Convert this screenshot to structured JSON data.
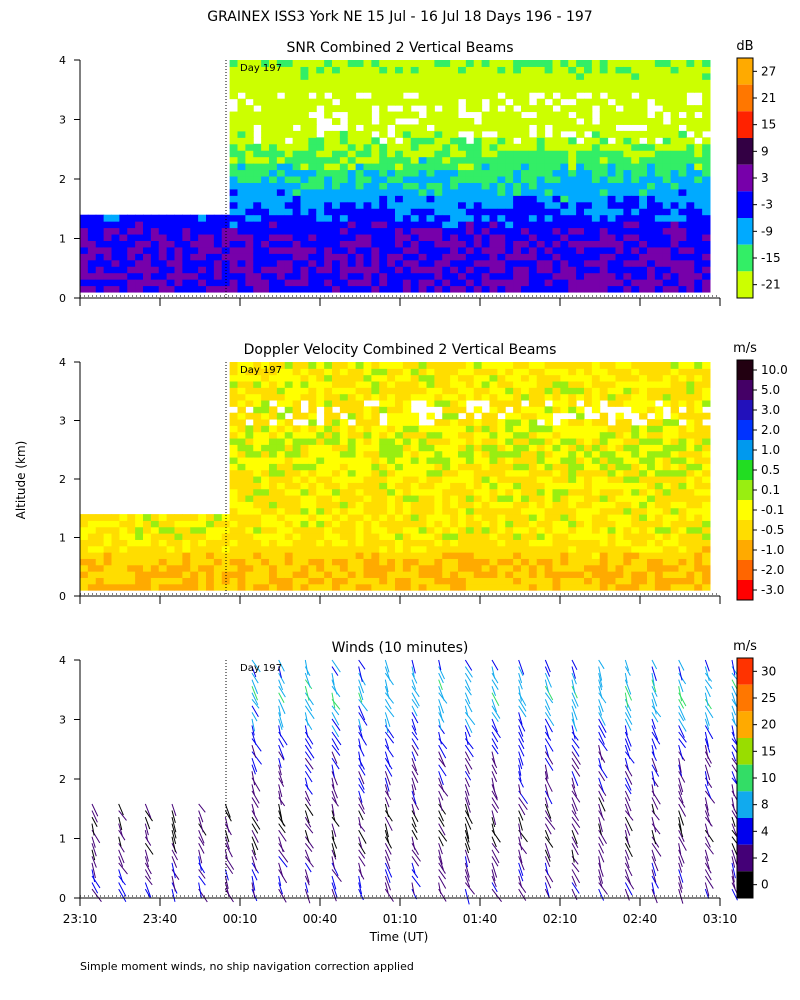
{
  "figure": {
    "title": "GRAINEX ISS3 York NE  15 Jul - 16 Jul 18 Days 196 - 197",
    "footnote": "Simple moment winds, no ship navigation correction applied",
    "ylabel": "Altitude (km)",
    "xlabel": "Time (UT)",
    "day_marker": "Day 197",
    "x_ticks": [
      "23:10",
      "23:40",
      "00:10",
      "00:40",
      "01:10",
      "01:40",
      "02:10",
      "02:40",
      "03:10"
    ],
    "y_ticks": [
      "0",
      "1",
      "2",
      "3",
      "4"
    ]
  },
  "chart_data": [
    {
      "type": "heatmap",
      "title": "SNR Combined 2 Vertical Beams",
      "xlabel": "Time (UT)",
      "ylabel": "Altitude (km)",
      "x_range": [
        "23:10",
        "03:10"
      ],
      "ylim": [
        0,
        4
      ],
      "colorbar_unit": "dB",
      "colorbar_ticks": [
        "27",
        "21",
        "15",
        "9",
        "3",
        "-3",
        "-9",
        "-15",
        "-21"
      ],
      "colorbar_colors": [
        "#ffaa00",
        "#ff7700",
        "#ff2200",
        "#330044",
        "#7700aa",
        "#0000ff",
        "#00aaff",
        "#33ee66",
        "#ccff00"
      ],
      "data_coverage": [
        {
          "time_start": "23:10",
          "time_end": "00:04",
          "alt_max_km": 1.4
        },
        {
          "time_start": "00:04",
          "time_end": "03:10",
          "alt_max_km": 4.0
        }
      ],
      "bands": [
        {
          "alt_km": 0.5,
          "snr_db": 3
        },
        {
          "alt_km": 1.0,
          "snr_db": 3
        },
        {
          "alt_km": 1.5,
          "snr_db": -3
        },
        {
          "alt_km": 2.0,
          "snr_db": -9
        },
        {
          "alt_km": 2.5,
          "snr_db": -15
        },
        {
          "alt_km": 3.0,
          "snr_db": -21
        },
        {
          "alt_km": 3.5,
          "snr_db": -21
        },
        {
          "alt_km": 4.0,
          "snr_db": -15
        }
      ]
    },
    {
      "type": "heatmap",
      "title": "Doppler Velocity Combined 2 Vertical Beams",
      "xlabel": "Time (UT)",
      "ylabel": "Altitude (km)",
      "x_range": [
        "23:10",
        "03:10"
      ],
      "ylim": [
        0,
        4
      ],
      "colorbar_unit": "m/s",
      "colorbar_ticks": [
        "10.0",
        "5.0",
        "3.0",
        "2.0",
        "1.0",
        "0.5",
        "0.1",
        "-0.1",
        "-0.5",
        "-1.0",
        "-2.0",
        "-3.0"
      ],
      "colorbar_colors": [
        "#220011",
        "#440066",
        "#2211bb",
        "#0033ff",
        "#0099ee",
        "#22dd22",
        "#99ee11",
        "#ffff00",
        "#ffdd00",
        "#ffaa00",
        "#ff6600",
        "#ff0000"
      ],
      "bands": [
        {
          "alt_km": 0.5,
          "velocity_ms": -0.5
        },
        {
          "alt_km": 1.0,
          "velocity_ms": -0.1
        },
        {
          "alt_km": 1.5,
          "velocity_ms": -0.1
        },
        {
          "alt_km": 2.0,
          "velocity_ms": -0.1
        },
        {
          "alt_km": 2.5,
          "velocity_ms": 0.1
        },
        {
          "alt_km": 3.0,
          "velocity_ms": -0.1
        },
        {
          "alt_km": 3.5,
          "velocity_ms": -0.1
        },
        {
          "alt_km": 4.0,
          "velocity_ms": -0.1
        }
      ]
    },
    {
      "type": "scatter",
      "title": "Winds (10 minutes)",
      "xlabel": "Time (UT)",
      "ylabel": "Altitude (km)",
      "x_range": [
        "23:10",
        "03:10"
      ],
      "ylim": [
        0,
        4
      ],
      "colorbar_unit": "m/s",
      "colorbar_ticks": [
        "30",
        "25",
        "20",
        "15",
        "10",
        "8",
        "4",
        "2",
        "0"
      ],
      "colorbar_colors": [
        "#ff3300",
        "#ff7700",
        "#ffaa00",
        "#99dd00",
        "#33dd66",
        "#11aaee",
        "#0000ee",
        "#440077",
        "#000000"
      ],
      "profile_times": [
        "23:10",
        "23:20",
        "23:30",
        "23:40",
        "23:50",
        "00:00",
        "00:10",
        "00:20",
        "00:30",
        "00:40",
        "00:50",
        "01:00",
        "01:10",
        "01:20",
        "01:30",
        "01:40",
        "01:50",
        "02:00",
        "02:10",
        "02:20",
        "02:30",
        "02:40",
        "02:50",
        "03:00",
        "03:10"
      ],
      "profile_tops_km": [
        1.6,
        1.6,
        1.6,
        1.6,
        1.6,
        1.6,
        4.1,
        4.1,
        4.1,
        4.1,
        4.1,
        4.1,
        4.1,
        4.1,
        4.1,
        4.1,
        4.1,
        4.1,
        4.1,
        4.1,
        4.1,
        4.1,
        4.1,
        4.1,
        4.1
      ],
      "speed_by_altitude": [
        {
          "alt_km": 0.5,
          "speed_ms": 4
        },
        {
          "alt_km": 1.0,
          "speed_ms": 2
        },
        {
          "alt_km": 1.5,
          "speed_ms": 2
        },
        {
          "alt_km": 2.0,
          "speed_ms": 4
        },
        {
          "alt_km": 2.5,
          "speed_ms": 4
        },
        {
          "alt_km": 3.0,
          "speed_ms": 8
        },
        {
          "alt_km": 3.5,
          "speed_ms": 10
        },
        {
          "alt_km": 4.0,
          "speed_ms": 8
        }
      ]
    }
  ]
}
